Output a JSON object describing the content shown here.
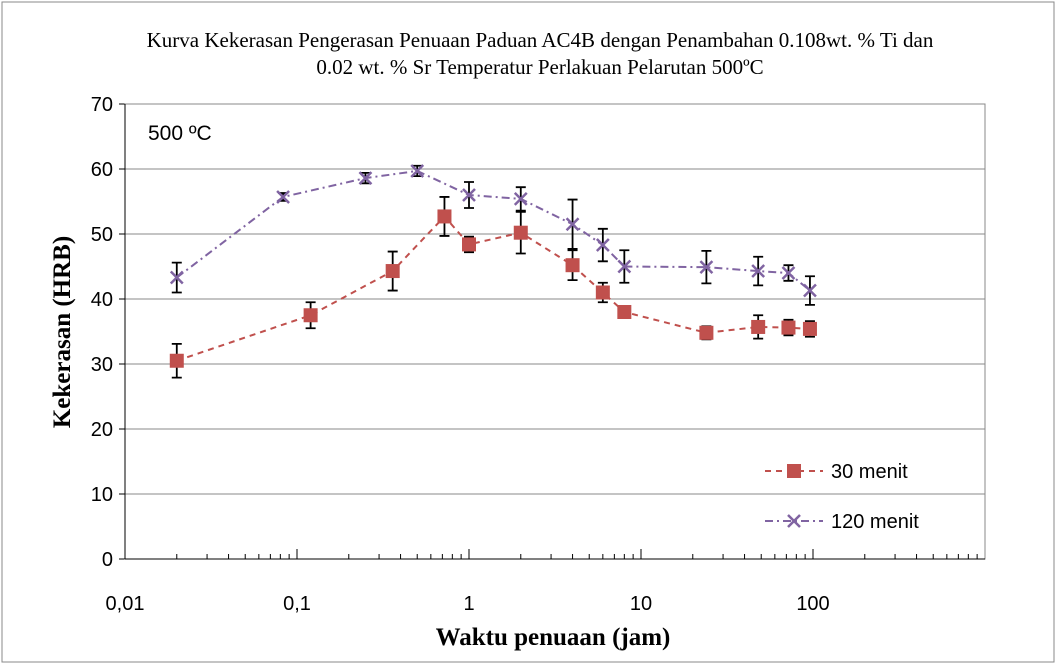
{
  "chart_data": {
    "type": "line",
    "title": [
      "Kurva Kekerasan Pengerasan Penuaan Paduan AC4B  dengan Penambahan 0.108wt. % Ti dan",
      "0.02 wt. % Sr Temperatur Perlakuan Pelarutan  500ºC"
    ],
    "annotation": "500 ºC",
    "x_label": "Waktu penuaan (jam)",
    "y_label": "Kekerasan  (HRB)",
    "xscale": "log",
    "xlim": [
      0.01,
      1000
    ],
    "xticks": [
      {
        "value": 0.01,
        "label": "0,01"
      },
      {
        "value": 0.1,
        "label": "0,1"
      },
      1,
      10,
      100
    ],
    "ylim": [
      0,
      70
    ],
    "yticks": [
      0,
      10,
      20,
      30,
      40,
      50,
      60,
      70
    ],
    "grid": true,
    "legend": "bottom-right",
    "series": [
      {
        "name": "30 menit",
        "color": "#c0504d",
        "marker": "square",
        "dash": "6,5",
        "x": [
          0.02,
          0.12,
          0.36,
          0.72,
          1,
          2,
          4,
          6,
          8,
          24,
          48,
          72,
          96
        ],
        "values": [
          30.5,
          37.5,
          44.3,
          52.7,
          48.4,
          50.2,
          45.2,
          41,
          38,
          34.8,
          35.7,
          35.6,
          35.4
        ],
        "errors": [
          2.6,
          2,
          3,
          3,
          1.2,
          3.2,
          2.3,
          1.5,
          0.5,
          1,
          1.8,
          1.2,
          1.2
        ]
      },
      {
        "name": "120 menit",
        "color": "#8064a2",
        "marker": "x",
        "dash": "8,4,2,4",
        "x": [
          0.02,
          0.083,
          0.25,
          0.5,
          1,
          2,
          4,
          6,
          8,
          24,
          48,
          72,
          96
        ],
        "values": [
          43.3,
          55.7,
          58.6,
          59.7,
          56,
          55.4,
          51.5,
          48.3,
          45,
          44.9,
          44.3,
          44,
          41.3
        ],
        "errors": [
          2.3,
          0.6,
          0.8,
          0.8,
          2,
          1.8,
          3.8,
          2.5,
          2.5,
          2.5,
          2.2,
          1.2,
          2.2
        ]
      }
    ]
  }
}
